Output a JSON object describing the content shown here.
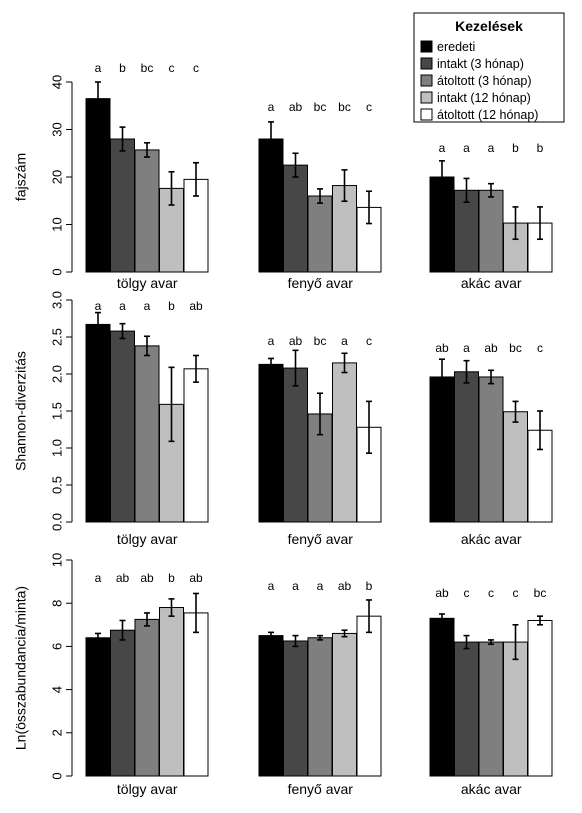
{
  "chart_data": [
    {
      "type": "bar",
      "ylabel": "fajszám",
      "ylim": [
        0,
        40
      ],
      "yticks": [
        "0",
        "10",
        "20",
        "30",
        "40"
      ],
      "categories": [
        "tölgy avar",
        "fenyő avar",
        "akác avar"
      ],
      "legend": {
        "title": "Kezelések",
        "placement": "top-right",
        "entries": [
          "eredeti",
          "intakt (3 hónap)",
          "átoltott (3 hónap)",
          "intakt (12 hónap)",
          "átoltott (12 hónap)"
        ]
      },
      "series": [
        {
          "name": "eredeti",
          "color": "#000000",
          "values": [
            36.5,
            28.0,
            20.0
          ],
          "err": [
            3.5,
            3.6,
            3.4
          ],
          "letters": [
            "a",
            "a",
            "a"
          ]
        },
        {
          "name": "intakt (3 hónap)",
          "color": "#474747",
          "values": [
            28.0,
            22.5,
            17.2
          ],
          "err": [
            2.5,
            2.5,
            2.5
          ],
          "letters": [
            "b",
            "ab",
            "a"
          ]
        },
        {
          "name": "átoltott (3 hónap)",
          "color": "#7f7f7f",
          "values": [
            25.7,
            16.0,
            17.2
          ],
          "err": [
            1.5,
            1.5,
            1.4
          ],
          "letters": [
            "bc",
            "bc",
            "a"
          ]
        },
        {
          "name": "intakt (12 hónap)",
          "color": "#bfbfbf",
          "values": [
            17.6,
            18.2,
            10.3
          ],
          "err": [
            3.5,
            3.3,
            3.4
          ],
          "letters": [
            "c",
            "bc",
            "b"
          ]
        },
        {
          "name": "átoltott (12 hónap)",
          "color": "#ffffff",
          "values": [
            19.5,
            13.6,
            10.3
          ],
          "err": [
            3.5,
            3.4,
            3.4
          ],
          "letters": [
            "c",
            "c",
            "b"
          ]
        }
      ]
    },
    {
      "type": "bar",
      "ylabel": "Shannon-diverzitás",
      "ylim": [
        0,
        3
      ],
      "yticks": [
        "0.0",
        "0.5",
        "1.0",
        "1.5",
        "2.0",
        "2.5",
        "3.0"
      ],
      "categories": [
        "tölgy avar",
        "fenyő avar",
        "akác avar"
      ],
      "series": [
        {
          "name": "eredeti",
          "color": "#000000",
          "values": [
            2.67,
            2.13,
            1.96
          ],
          "err": [
            0.16,
            0.08,
            0.24
          ],
          "letters": [
            "a",
            "a",
            "ab"
          ]
        },
        {
          "name": "intakt (3 hónap)",
          "color": "#474747",
          "values": [
            2.58,
            2.08,
            2.03
          ],
          "err": [
            0.1,
            0.24,
            0.15
          ],
          "letters": [
            "a",
            "ab",
            "a"
          ]
        },
        {
          "name": "átoltott (3 hónap)",
          "color": "#7f7f7f",
          "values": [
            2.38,
            1.46,
            1.96
          ],
          "err": [
            0.13,
            0.28,
            0.09
          ],
          "letters": [
            "a",
            "bc",
            "ab"
          ]
        },
        {
          "name": "intakt (12 hónap)",
          "color": "#bfbfbf",
          "values": [
            1.59,
            2.15,
            1.49
          ],
          "err": [
            0.5,
            0.13,
            0.14
          ],
          "letters": [
            "b",
            "a",
            "bc"
          ]
        },
        {
          "name": "átoltott (12 hónap)",
          "color": "#ffffff",
          "values": [
            2.07,
            1.28,
            1.24
          ],
          "err": [
            0.18,
            0.35,
            0.26
          ],
          "letters": [
            "ab",
            "c",
            "c"
          ]
        }
      ]
    },
    {
      "type": "bar",
      "ylabel": "Ln(összabundancia/minta)",
      "ylim": [
        0,
        10
      ],
      "yticks": [
        "0",
        "2",
        "4",
        "6",
        "8",
        "10"
      ],
      "categories": [
        "tölgy avar",
        "fenyő avar",
        "akác avar"
      ],
      "series": [
        {
          "name": "eredeti",
          "color": "#000000",
          "values": [
            6.4,
            6.5,
            7.3
          ],
          "err": [
            0.2,
            0.15,
            0.2
          ],
          "letters": [
            "a",
            "a",
            "ab"
          ]
        },
        {
          "name": "intakt (3 hónap)",
          "color": "#474747",
          "values": [
            6.75,
            6.25,
            6.2
          ],
          "err": [
            0.45,
            0.25,
            0.3
          ],
          "letters": [
            "ab",
            "a",
            "c"
          ]
        },
        {
          "name": "átoltott (3 hónap)",
          "color": "#7f7f7f",
          "values": [
            7.25,
            6.4,
            6.2
          ],
          "err": [
            0.3,
            0.1,
            0.1
          ],
          "letters": [
            "ab",
            "a",
            "c"
          ]
        },
        {
          "name": "intakt (12 hónap)",
          "color": "#bfbfbf",
          "values": [
            7.8,
            6.6,
            6.2
          ],
          "err": [
            0.4,
            0.15,
            0.8
          ],
          "letters": [
            "b",
            "ab",
            "c"
          ]
        },
        {
          "name": "átoltott (12 hónap)",
          "color": "#ffffff",
          "values": [
            7.55,
            7.4,
            7.2
          ],
          "err": [
            0.9,
            0.75,
            0.2
          ],
          "letters": [
            "ab",
            "b",
            "bc"
          ]
        }
      ]
    }
  ]
}
